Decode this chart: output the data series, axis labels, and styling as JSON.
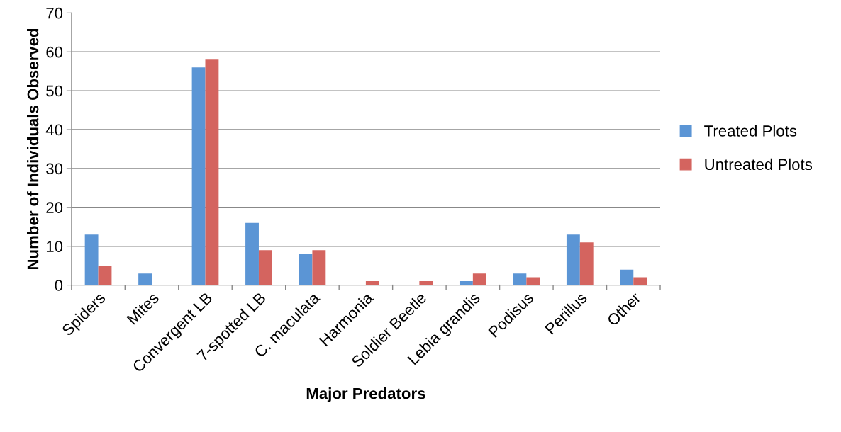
{
  "chart_data": {
    "type": "bar",
    "xlabel": "Major Predators",
    "ylabel": "Number of Individuals Observed",
    "categories": [
      "Spiders",
      "Mites",
      "Convergent LB",
      "7-spotted LB",
      "C. maculata",
      "Harmonia",
      "Soldier Beetle",
      "Lebia grandis",
      "Podisus",
      "Perillus",
      "Other"
    ],
    "series": [
      {
        "name": "Treated Plots",
        "color": "#5b95d5",
        "values": [
          13,
          3,
          56,
          16,
          8,
          0,
          0,
          1,
          3,
          13,
          4
        ]
      },
      {
        "name": "Untreated Plots",
        "color": "#d4645f",
        "values": [
          5,
          0,
          58,
          9,
          9,
          1,
          1,
          3,
          2,
          11,
          2
        ]
      }
    ],
    "ylim": [
      0,
      70
    ],
    "yticks": [
      0,
      10,
      20,
      30,
      40,
      50,
      60,
      70
    ],
    "grid": "y",
    "legend": "right"
  }
}
